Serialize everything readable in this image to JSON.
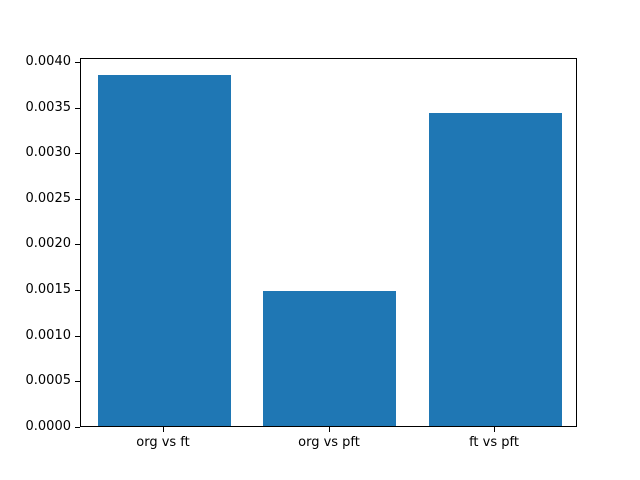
{
  "chart_data": {
    "type": "bar",
    "categories": [
      "org vs ft",
      "org vs pft",
      "ft vs pft"
    ],
    "values": [
      0.00385,
      0.00148,
      0.00343
    ],
    "title": "",
    "xlabel": "",
    "ylabel": "",
    "ylim": [
      0,
      0.0040425
    ],
    "yticks": [
      0.0,
      0.0005,
      0.001,
      0.0015,
      0.002,
      0.0025,
      0.003,
      0.0035,
      0.004
    ],
    "ytick_labels": [
      "0.0000",
      "0.0005",
      "0.0010",
      "0.0015",
      "0.0020",
      "0.0025",
      "0.0030",
      "0.0035",
      "0.0040"
    ],
    "bar_color": "#1f77b4",
    "bar_width_fraction": 0.8,
    "spine_color": "#000000",
    "text_color": "#000000",
    "grid": false,
    "legend_position": "none"
  }
}
